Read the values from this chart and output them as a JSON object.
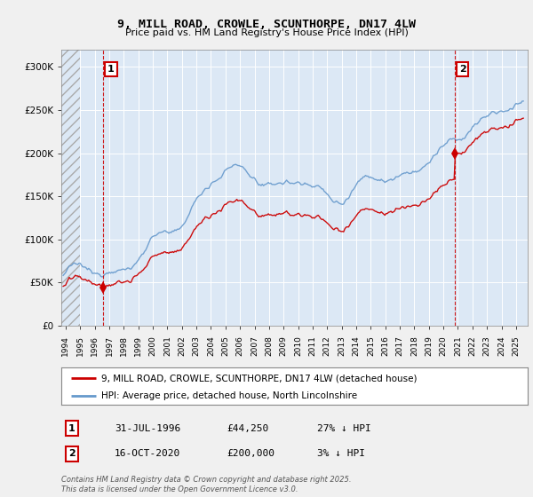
{
  "title": "9, MILL ROAD, CROWLE, SCUNTHORPE, DN17 4LW",
  "subtitle": "Price paid vs. HM Land Registry's House Price Index (HPI)",
  "legend_line1": "9, MILL ROAD, CROWLE, SCUNTHORPE, DN17 4LW (detached house)",
  "legend_line2": "HPI: Average price, detached house, North Lincolnshire",
  "annotation1_label": "1",
  "annotation1_date": "31-JUL-1996",
  "annotation1_price": "£44,250",
  "annotation1_hpi": "27% ↓ HPI",
  "annotation2_label": "2",
  "annotation2_date": "16-OCT-2020",
  "annotation2_price": "£200,000",
  "annotation2_hpi": "3% ↓ HPI",
  "footer": "Contains HM Land Registry data © Crown copyright and database right 2025.\nThis data is licensed under the Open Government Licence v3.0.",
  "background_color": "#f0f0f0",
  "plot_bg_color": "#dce8f5",
  "red_line_color": "#cc0000",
  "blue_line_color": "#6699cc",
  "grid_color": "#ffffff",
  "ylim": [
    0,
    320000
  ],
  "xlim_start": 1993.7,
  "xlim_end": 2025.8,
  "sale1_x": 1996.58,
  "sale1_y": 44250,
  "sale2_x": 2020.79,
  "sale2_y": 200000,
  "vline_color": "#cc0000",
  "hpi_ratio": 0.78
}
